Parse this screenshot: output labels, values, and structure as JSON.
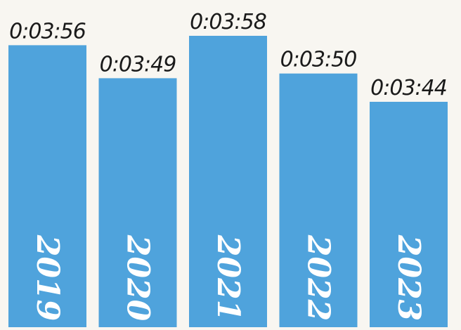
{
  "chart_data": {
    "type": "bar",
    "categories": [
      "2019",
      "2020",
      "2021",
      "2022",
      "2023"
    ],
    "values": [
      236,
      229,
      238,
      230,
      224
    ],
    "value_labels": [
      "0:03:56",
      "0:03:49",
      "0:03:58",
      "0:03:50",
      "0:03:44"
    ],
    "bar_color": "#4fa3dc",
    "title": "",
    "xlabel": "",
    "ylabel": "",
    "grid": false,
    "legend": "none"
  }
}
